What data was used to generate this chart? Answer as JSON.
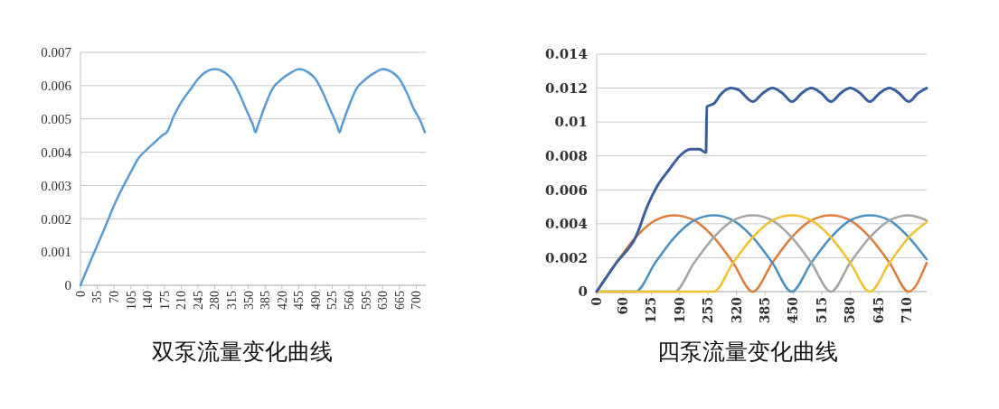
{
  "chart_data": [
    {
      "type": "line",
      "title": "双泵流量变化曲线",
      "xlim": [
        0,
        720
      ],
      "xticks": [
        0,
        35,
        70,
        105,
        140,
        175,
        210,
        245,
        280,
        315,
        350,
        385,
        420,
        455,
        490,
        525,
        560,
        595,
        630,
        665,
        700
      ],
      "ylim": [
        0,
        0.007
      ],
      "yticks": [
        0,
        0.001,
        0.002,
        0.003,
        0.004,
        0.005,
        0.006,
        0.007
      ],
      "grid": "y",
      "series": [
        {
          "color": "#5b9bd5",
          "x": [
            0,
            20,
            35,
            50,
            70,
            90,
            105,
            120,
            140,
            155,
            170,
            180,
            195,
            210,
            230,
            245,
            260,
            280,
            300,
            315,
            330,
            345,
            360,
            365,
            370,
            385,
            400,
            420,
            440,
            455,
            475,
            490,
            505,
            520,
            535,
            540,
            545,
            560,
            575,
            595,
            615,
            630,
            650,
            665,
            680,
            695,
            710,
            718
          ],
          "values": [
            0,
            0.0007,
            0.0012,
            0.0017,
            0.0024,
            0.003,
            0.0034,
            0.0038,
            0.0041,
            0.0043,
            0.0045,
            0.0046,
            0.0051,
            0.0055,
            0.0059,
            0.0062,
            0.0064,
            0.0065,
            0.0064,
            0.0062,
            0.0058,
            0.0053,
            0.0048,
            0.0046,
            0.0048,
            0.0054,
            0.0059,
            0.0062,
            0.0064,
            0.0065,
            0.0064,
            0.0062,
            0.0058,
            0.0053,
            0.0048,
            0.0046,
            0.0048,
            0.0054,
            0.0059,
            0.0062,
            0.0064,
            0.0065,
            0.0064,
            0.0062,
            0.0058,
            0.0053,
            0.0049,
            0.0046
          ]
        }
      ]
    },
    {
      "type": "line",
      "title": "四泵流量变化曲线",
      "xlim": [
        0,
        755
      ],
      "xticks": [
        0,
        60,
        125,
        190,
        255,
        320,
        385,
        450,
        515,
        580,
        645,
        710
      ],
      "ylim": [
        0,
        0.014
      ],
      "yticks": [
        0,
        0.002,
        0.004,
        0.006,
        0.008,
        0.01,
        0.012,
        0.014
      ],
      "grid": "y",
      "series": [
        {
          "color": "#e07b39",
          "x": [
            0,
            45,
            89,
            134,
            178,
            223,
            268,
            312,
            357,
            402,
            446,
            491,
            536,
            580,
            625,
            670,
            714,
            755
          ],
          "values": [
            0,
            0.0017,
            0.0032,
            0.0042,
            0.0045,
            0.0042,
            0.0032,
            0.0017,
            0,
            0.0017,
            0.0032,
            0.0042,
            0.0045,
            0.0042,
            0.0032,
            0.0017,
            0,
            0.0017
          ]
        },
        {
          "color": "#4a90c0",
          "x": [
            0,
            89,
            134,
            178,
            223,
            268,
            312,
            357,
            402,
            446,
            491,
            536,
            580,
            625,
            670,
            714,
            755
          ],
          "values": [
            0,
            0,
            0.0017,
            0.0032,
            0.0042,
            0.0045,
            0.0042,
            0.0032,
            0.0017,
            0,
            0.0017,
            0.0032,
            0.0042,
            0.0045,
            0.0042,
            0.0032,
            0.0019
          ]
        },
        {
          "color": "#a5a5a5",
          "x": [
            0,
            178,
            223,
            268,
            312,
            357,
            402,
            446,
            491,
            536,
            580,
            625,
            670,
            714,
            755
          ],
          "values": [
            0,
            0,
            0.0017,
            0.0032,
            0.0042,
            0.0045,
            0.0042,
            0.0032,
            0.0017,
            0,
            0.0017,
            0.0032,
            0.0042,
            0.0045,
            0.0042
          ]
        },
        {
          "color": "#f2c12e",
          "x": [
            0,
            268,
            312,
            357,
            402,
            446,
            491,
            536,
            580,
            625,
            670,
            714,
            755
          ],
          "values": [
            0,
            0,
            0.0017,
            0.0032,
            0.0042,
            0.0045,
            0.0042,
            0.0032,
            0.0017,
            0,
            0.0017,
            0.0032,
            0.0041
          ]
        },
        {
          "color": "#3a5fa0",
          "x": [
            0,
            45,
            90,
            117,
            138,
            166,
            190,
            214,
            235,
            250,
            252,
            269,
            283,
            307,
            324,
            357,
            380,
            402,
            425,
            447,
            469,
            491,
            514,
            536,
            558,
            580,
            603,
            625,
            647,
            670,
            692,
            714,
            735,
            755
          ],
          "values": [
            0,
            0.0017,
            0.00325,
            0.0051,
            0.0062,
            0.0072,
            0.008,
            0.0084,
            0.0084,
            0.0082,
            0.0109,
            0.0111,
            0.0116,
            0.012,
            0.0119,
            0.0112,
            0.0117,
            0.012,
            0.0117,
            0.0112,
            0.0117,
            0.012,
            0.0117,
            0.0112,
            0.0117,
            0.012,
            0.0117,
            0.0112,
            0.0117,
            0.012,
            0.0117,
            0.0112,
            0.0117,
            0.012
          ]
        }
      ]
    }
  ]
}
